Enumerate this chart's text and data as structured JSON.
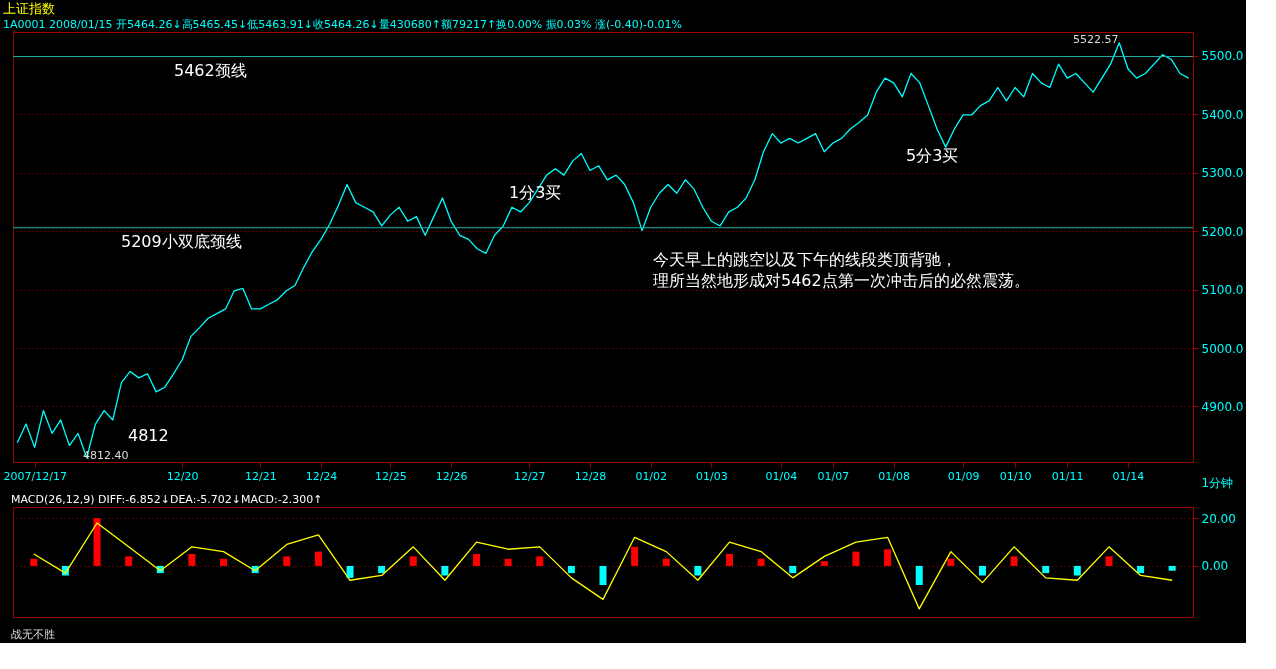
{
  "chart_data": [
    {
      "type": "line",
      "title": "上证指数",
      "subtitle": "1A0001 2008/01/15 开5464.26↓高5465.45↓低5463.91↓收5464.26↓量430680↑额79217↑换0.00% 振0.03% 涨(-0.40)-0.01%",
      "xlabel": "1分钟",
      "categories": [
        null,
        null,
        "2007/12/17",
        null,
        null,
        null,
        null,
        null,
        null,
        null,
        null,
        null,
        null,
        null,
        null,
        null,
        null,
        null,
        null,
        "12/20",
        null,
        null,
        null,
        null,
        null,
        null,
        null,
        null,
        "12/21",
        null,
        null,
        null,
        null,
        null,
        null,
        "12/24",
        null,
        null,
        null,
        null,
        null,
        null,
        null,
        "12/25",
        null,
        null,
        null,
        null,
        null,
        null,
        "12/26",
        null,
        null,
        null,
        null,
        null,
        null,
        null,
        null,
        "12/27",
        null,
        null,
        null,
        null,
        null,
        null,
        "12/28",
        null,
        null,
        null,
        null,
        null,
        null,
        "01/02",
        null,
        null,
        null,
        null,
        null,
        null,
        "01/03",
        null,
        null,
        null,
        null,
        null,
        null,
        null,
        "01/04",
        null,
        null,
        null,
        null,
        null,
        "01/07",
        null,
        null,
        null,
        null,
        null,
        null,
        "01/08",
        null,
        null,
        null,
        null,
        null,
        null,
        null,
        "01/09",
        null,
        null,
        null,
        null,
        null,
        "01/10",
        null,
        null,
        null,
        null,
        null,
        "01/11",
        null,
        null,
        null,
        null,
        null,
        null,
        "01/14",
        null,
        null,
        null,
        null,
        null,
        null,
        null
      ],
      "ylim": [
        4805,
        5541
      ],
      "yticks": [
        {
          "value": 4900,
          "label": "4900.0"
        },
        {
          "value": 5000,
          "label": "5000.0"
        },
        {
          "value": 5100,
          "label": "5100.0"
        },
        {
          "value": 5200,
          "label": "5200.0"
        },
        {
          "value": 5300,
          "label": "5300.0"
        },
        {
          "value": 5400,
          "label": "5400.0"
        },
        {
          "value": 5500,
          "label": "5500.0"
        }
      ],
      "grid": "y",
      "series": [
        {
          "color": "#00ffff",
          "values": [
            4838,
            4870,
            4830,
            4893,
            4854,
            4877,
            4833,
            4854,
            4812.4,
            4870,
            4893,
            4877,
            4941,
            4960,
            4949,
            4956,
            4925,
            4933,
            4956,
            4980,
            5020,
            5035,
            5051,
            5059,
            5067,
            5098,
            5102,
            5067,
            5067,
            5075,
            5083,
            5098,
            5107,
            5138,
            5165,
            5186,
            5212,
            5244,
            5280,
            5249,
            5241,
            5233,
            5209,
            5228,
            5241,
            5217,
            5225,
            5193,
            5225,
            5257,
            5217,
            5193,
            5186,
            5170,
            5162,
            5193,
            5209,
            5241,
            5233,
            5249,
            5272,
            5296,
            5307,
            5296,
            5320,
            5333,
            5304,
            5312,
            5288,
            5296,
            5280,
            5249,
            5201,
            5241,
            5265,
            5280,
            5265,
            5288,
            5272,
            5241,
            5217,
            5209,
            5233,
            5241,
            5257,
            5288,
            5336,
            5367,
            5351,
            5359,
            5351,
            5359,
            5367,
            5336,
            5351,
            5359,
            5375,
            5386,
            5399,
            5438,
            5462,
            5454,
            5430,
            5470,
            5454,
            5415,
            5375,
            5344,
            5375,
            5399,
            5399,
            5415,
            5423,
            5446,
            5423,
            5446,
            5430,
            5470,
            5454,
            5446,
            5486,
            5462,
            5470,
            5454,
            5438,
            5462,
            5486,
            5522.57,
            5478,
            5462,
            5470,
            5486,
            5502,
            5494,
            5470,
            5462
          ]
        }
      ],
      "ref_lines": [
        {
          "axis": "y",
          "value": 5499,
          "label": "5462颈线",
          "color": "#20b2aa",
          "line_style": "solid"
        },
        {
          "axis": "y",
          "value": 5206,
          "label": "5209小双底颈线",
          "color": "#20b2aa",
          "line_style": "solid"
        }
      ],
      "annotations": [
        "5522.57",
        "4812.40",
        "4812",
        "1分3买",
        "5分3买",
        "今天早上的跳空以及下午的线段类顶背驰，",
        "理所当然地形成对5462点第一次冲击后的必然震荡。"
      ]
    },
    {
      "type": "bar",
      "title": "MACD(26,12,9) DIFF:-6.852↓DEA:-5.702↓MACD:-2.300↑",
      "categories": [
        null,
        null,
        null,
        null,
        null,
        null,
        null,
        null,
        null,
        null,
        null,
        null,
        null,
        null,
        null,
        null,
        null,
        null,
        null,
        null,
        null,
        null,
        null,
        null,
        null,
        null,
        null,
        null,
        null,
        null,
        null,
        null,
        null,
        null,
        null,
        null,
        null
      ],
      "ylim": [
        -21.4,
        24.7
      ],
      "yticks": [
        {
          "value": 0,
          "label": "0.00"
        },
        {
          "value": 20,
          "label": "20.00"
        }
      ],
      "grid": "y",
      "tick_labels": "y",
      "series": [
        {
          "type": "bar",
          "colors": [
            "#ff0000",
            "#00ffff",
            "#ff0000",
            "#ff0000",
            "#00ffff",
            "#ff0000",
            "#ff0000",
            "#00ffff",
            "#ff0000",
            "#ff0000",
            "#00ffff",
            "#00ffff",
            "#ff0000",
            "#00ffff",
            "#ff0000",
            "#ff0000",
            "#ff0000",
            "#00ffff",
            "#00ffff",
            "#ff0000",
            "#ff0000",
            "#00ffff",
            "#ff0000",
            "#ff0000",
            "#00ffff",
            "#ff0000",
            "#ff0000",
            "#ff0000",
            "#00ffff",
            "#ff0000",
            "#00ffff",
            "#ff0000",
            "#00ffff",
            "#00ffff",
            "#ff0000",
            "#00ffff",
            "#00ffff"
          ],
          "values": [
            3,
            -4,
            20,
            4,
            -3,
            5,
            3,
            -3,
            4,
            6,
            -5,
            -3,
            4,
            -4,
            5,
            3,
            4,
            -3,
            -8,
            8,
            3,
            -4,
            5,
            3,
            -3,
            2,
            6,
            7,
            -8,
            3,
            -4,
            4,
            -3,
            -4,
            4,
            -3,
            -2
          ]
        },
        {
          "type": "line",
          "color": "#ffff00",
          "values": [
            5,
            -3,
            18,
            8,
            -2,
            8,
            6,
            -2,
            9,
            13,
            -6,
            -4,
            8,
            -6,
            10,
            7,
            8,
            -5,
            -14,
            12,
            6,
            -6,
            10,
            6,
            -5,
            4,
            10,
            12,
            -18,
            6,
            -7,
            8,
            -5,
            -6,
            8,
            -4,
            -6
          ]
        }
      ],
      "annotations": [
        "战无不胜"
      ]
    }
  ]
}
